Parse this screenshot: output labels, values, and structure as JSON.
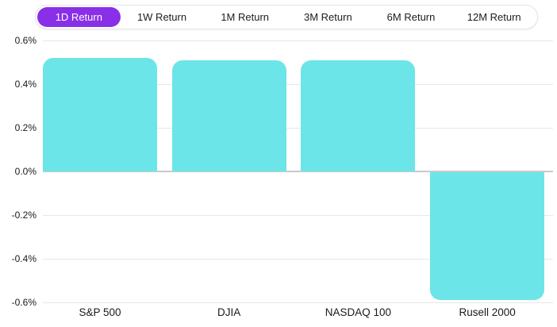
{
  "tabs": {
    "items": [
      {
        "label": "1D Return",
        "selected": true
      },
      {
        "label": "1W Return",
        "selected": false
      },
      {
        "label": "1M Return",
        "selected": false
      },
      {
        "label": "3M Return",
        "selected": false
      },
      {
        "label": "6M Return",
        "selected": false
      },
      {
        "label": "12M Return",
        "selected": false
      }
    ],
    "selected_bg": "#8a2fe8",
    "selected_text": "#ffffff"
  },
  "chart_data": {
    "type": "bar",
    "categories": [
      "S&P 500",
      "DJIA",
      "NASDAQ 100",
      "Rusell 2000"
    ],
    "values": [
      0.52,
      0.51,
      0.51,
      -0.59
    ],
    "unit": "%",
    "title": "",
    "xlabel": "",
    "ylabel": "",
    "ylim": [
      -0.6,
      0.6
    ],
    "yticks": [
      {
        "label": "0.6%",
        "value": 0.6
      },
      {
        "label": "0.4%",
        "value": 0.4
      },
      {
        "label": "0.2%",
        "value": 0.2
      },
      {
        "label": "0.0%",
        "value": 0.0
      },
      {
        "label": "-0.2%",
        "value": -0.2
      },
      {
        "label": "-0.4%",
        "value": -0.4
      },
      {
        "label": "-0.6%",
        "value": -0.6
      }
    ],
    "grid": true,
    "legend": "none",
    "bar_color": "#6ce5e8"
  }
}
